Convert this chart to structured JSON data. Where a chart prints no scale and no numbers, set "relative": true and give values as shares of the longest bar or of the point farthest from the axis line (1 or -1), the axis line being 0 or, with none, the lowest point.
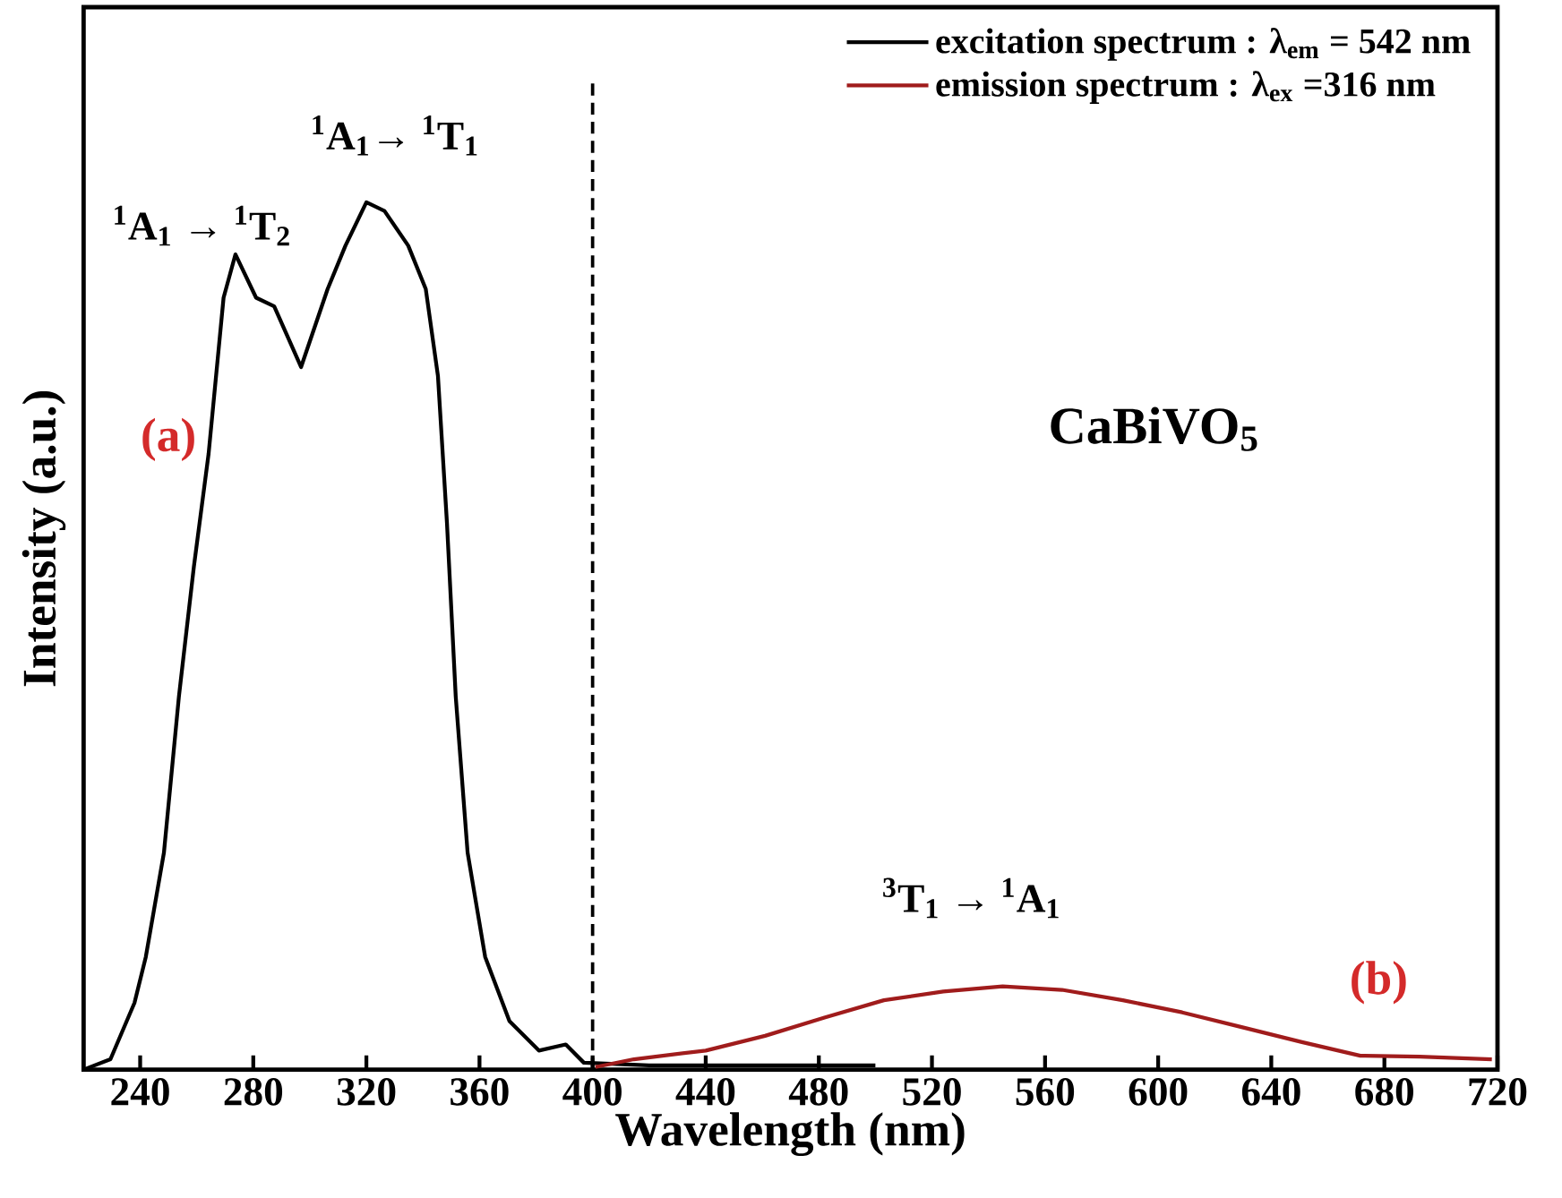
{
  "chart_data": {
    "type": "line",
    "relative": true,
    "xlabel": "Wavelength (nm)",
    "ylabel": "Intensity (a.u.)",
    "xlim": [
      220,
      720
    ],
    "xticks": [
      240,
      280,
      320,
      360,
      400,
      440,
      480,
      520,
      560,
      600,
      640,
      680,
      720
    ],
    "legend": "top right",
    "marker": "none",
    "line_style": "solid",
    "series": [
      {
        "name": "excitation spectrum : λ$_{em}$ = 542 nm",
        "color": "#000000",
        "x": [
          220,
          229.5,
          238,
          242,
          248.4,
          253.7,
          259,
          264.2,
          269.5,
          273.7,
          281,
          287.4,
          296.9,
          306.3,
          312.6,
          320,
          326.4,
          334.8,
          341,
          345.3,
          348.5,
          351.6,
          355.8,
          362,
          370.6,
          381,
          390.5,
          396.9,
          420,
          500
        ],
        "values": [
          0,
          0.012,
          0.077,
          0.13,
          0.25,
          0.43,
          0.58,
          0.71,
          0.89,
          0.94,
          0.89,
          0.88,
          0.81,
          0.9,
          0.95,
          1.0,
          0.99,
          0.95,
          0.9,
          0.8,
          0.63,
          0.43,
          0.25,
          0.13,
          0.056,
          0.022,
          0.029,
          0.008,
          0.005,
          0.005
        ]
      },
      {
        "name": "emission spectrum : λ$_{ex}$ =316 nm",
        "color": "#a01c1c",
        "x": [
          401,
          414.6,
          440,
          461,
          482,
          503,
          524,
          545,
          566,
          587.5,
          608.5,
          629.5,
          650.5,
          671.5,
          692.5,
          718
        ],
        "values": [
          0.003,
          0.012,
          0.022,
          0.039,
          0.06,
          0.08,
          0.09,
          0.096,
          0.092,
          0.08,
          0.066,
          0.049,
          0.032,
          0.016,
          0.015,
          0.012
        ]
      }
    ],
    "ref_lines": [
      {
        "axis": "x",
        "value": 400,
        "color": "#000000",
        "line_style": "dashed"
      }
    ],
    "annotations": [
      {
        "text": "$^{1}$A$_{1}$ → $^{1}$T$_{2}$",
        "x": 273.7,
        "y": 0.94
      },
      {
        "text": "$^{1}$A$_{1}$→ $^{1}$T$_{1}$",
        "x": 320,
        "y": 1.0
      },
      {
        "text": "$^{3}$T$_{1}$ → $^{1}$A$_{1}$",
        "x": 545,
        "y": 0.096
      },
      "(a)",
      "(b)",
      "CaBiVO$_{5}$"
    ]
  }
}
